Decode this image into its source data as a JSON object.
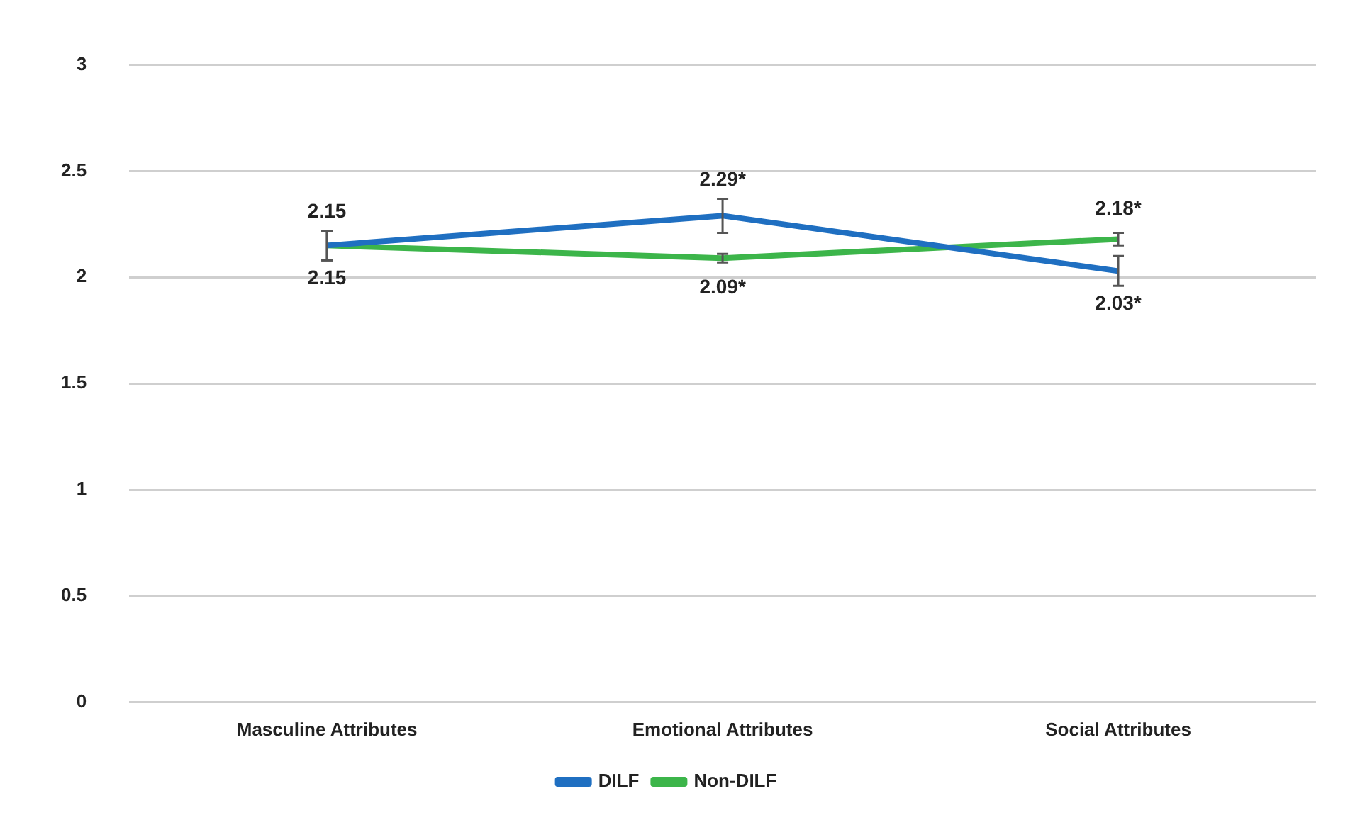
{
  "chart_data": {
    "type": "line",
    "categories": [
      "Masculine Attributes",
      "Emotional Attributes",
      "Social Attributes"
    ],
    "series": [
      {
        "name": "DILF",
        "color": "#1f6fc1",
        "values": [
          2.15,
          2.29,
          2.03
        ],
        "errors": [
          0.07,
          0.08,
          0.07
        ],
        "value_labels": [
          "2.15",
          "2.29*",
          "2.03*"
        ]
      },
      {
        "name": "Non-DILF",
        "color": "#3cb54a",
        "values": [
          2.15,
          2.09,
          2.18
        ],
        "errors": [
          0.07,
          0.02,
          0.03
        ],
        "value_labels": [
          "2.15",
          "2.09*",
          "2.18*"
        ]
      }
    ],
    "ylim": [
      0,
      3
    ],
    "yticks": [
      0,
      0.5,
      1,
      1.5,
      2,
      2.5,
      3
    ],
    "grid": "y",
    "legend": "bottom",
    "line_style": "solid"
  }
}
